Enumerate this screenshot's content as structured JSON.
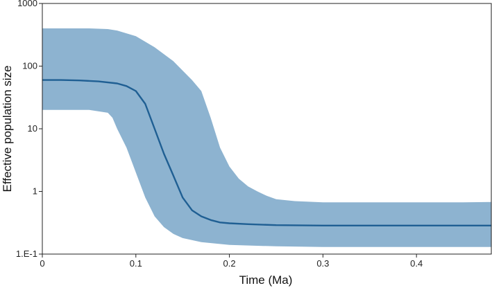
{
  "chart_data": {
    "type": "area",
    "title": "",
    "xlabel": "Time (Ma)",
    "ylabel": "Effective population size",
    "y_scale": "log",
    "xlim": [
      0,
      0.48
    ],
    "ylim": [
      0.1,
      1000
    ],
    "x_ticks": [
      0,
      0.1,
      0.2,
      0.3,
      0.4
    ],
    "x_tick_labels": [
      "0",
      "0.1",
      "0.2",
      "0.3",
      "0.4"
    ],
    "y_ticks": [
      0.1,
      1,
      10,
      100,
      1000
    ],
    "y_tick_labels": [
      "1.E-1",
      "1",
      "10",
      "100",
      "1000"
    ],
    "grid": false,
    "legend": "none",
    "colors": {
      "band": "#8db3d0",
      "median": "#1f5f93",
      "axis": "#222222"
    },
    "series": [
      {
        "role": "median",
        "x": [
          0,
          0.02,
          0.04,
          0.06,
          0.08,
          0.09,
          0.1,
          0.11,
          0.12,
          0.13,
          0.14,
          0.15,
          0.16,
          0.17,
          0.18,
          0.19,
          0.2,
          0.22,
          0.25,
          0.3,
          0.35,
          0.4,
          0.45,
          0.48
        ],
        "y": [
          60,
          60,
          59,
          57,
          53,
          48,
          40,
          25,
          10,
          4,
          1.8,
          0.8,
          0.5,
          0.4,
          0.35,
          0.32,
          0.31,
          0.3,
          0.29,
          0.285,
          0.285,
          0.285,
          0.285,
          0.285
        ]
      },
      {
        "role": "upper",
        "x": [
          0,
          0.05,
          0.07,
          0.08,
          0.1,
          0.12,
          0.14,
          0.16,
          0.17,
          0.18,
          0.19,
          0.2,
          0.21,
          0.22,
          0.23,
          0.24,
          0.25,
          0.27,
          0.3,
          0.35,
          0.4,
          0.45,
          0.48
        ],
        "y": [
          400,
          400,
          390,
          370,
          300,
          200,
          120,
          60,
          40,
          15,
          5,
          2.5,
          1.6,
          1.2,
          1.0,
          0.85,
          0.75,
          0.7,
          0.67,
          0.67,
          0.67,
          0.67,
          0.68
        ]
      },
      {
        "role": "lower",
        "x": [
          0,
          0.05,
          0.07,
          0.075,
          0.08,
          0.09,
          0.1,
          0.11,
          0.12,
          0.13,
          0.14,
          0.15,
          0.17,
          0.2,
          0.25,
          0.3,
          0.35,
          0.4,
          0.45,
          0.48
        ],
        "y": [
          20,
          20,
          18,
          15,
          10,
          5,
          2,
          0.8,
          0.4,
          0.27,
          0.21,
          0.18,
          0.155,
          0.14,
          0.133,
          0.13,
          0.13,
          0.13,
          0.13,
          0.13
        ]
      }
    ]
  }
}
